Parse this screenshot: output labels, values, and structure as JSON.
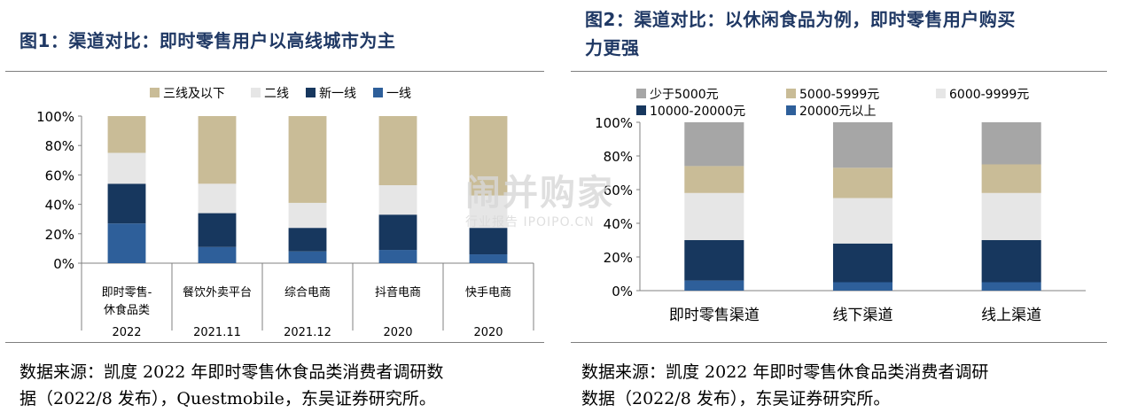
{
  "chart_data": [
    {
      "type": "bar",
      "stacked": true,
      "title": "图1：渠道对比：即时零售用户以高线城市为主",
      "categories": [
        "即时零售-休食品类",
        "餐饮外卖平台",
        "综合电商",
        "抖音电商",
        "快手电商"
      ],
      "category_lines": [
        [
          "即时零售-",
          "休食品类"
        ],
        [
          "餐饮外卖平台"
        ],
        [
          "综合电商"
        ],
        [
          "抖音电商"
        ],
        [
          "快手电商"
        ]
      ],
      "years": [
        "2022",
        "2021.11",
        "2021.12",
        "2020",
        "2020"
      ],
      "ylim": [
        0,
        100
      ],
      "yticks": [
        "0%",
        "20%",
        "40%",
        "60%",
        "80%",
        "100%"
      ],
      "legend_position": "top",
      "series": [
        {
          "name": "一线",
          "color": "#2e5f9a",
          "values": [
            27,
            11,
            8,
            9,
            6
          ]
        },
        {
          "name": "新一线",
          "color": "#17375e",
          "values": [
            27,
            23,
            16,
            24,
            18
          ]
        },
        {
          "name": "二线",
          "color": "#e6e6e6",
          "values": [
            21,
            20,
            17,
            20,
            22
          ]
        },
        {
          "name": "三线及以下",
          "color": "#c9bc97",
          "values": [
            25,
            46,
            59,
            47,
            54
          ]
        }
      ],
      "legend_order": [
        "三线及以下",
        "二线",
        "新一线",
        "一线"
      ],
      "source": "数据来源：凯度 2022 年即时零售休食品类消费者调研数据（2022/8 发布），Questmobile，东吴证券研究所。",
      "source_lines": [
        "数据来源：凯度 2022 年即时零售休食品类消费者调研数",
        "据（2022/8 发布），Questmobile，东吴证券研究所。"
      ]
    },
    {
      "type": "bar",
      "stacked": true,
      "title": "图2：渠道对比：以休闲食品为例，即时零售用户购买力更强",
      "title_lines": [
        "图2：渠道对比：以休闲食品为例，即时零售用户购买",
        "力更强"
      ],
      "categories": [
        "即时零售渠道",
        "线下渠道",
        "线上渠道"
      ],
      "ylim": [
        0,
        100
      ],
      "yticks": [
        "0%",
        "20%",
        "40%",
        "60%",
        "80%",
        "100%"
      ],
      "legend_position": "top",
      "series": [
        {
          "name": "20000元以上",
          "color": "#2e5f9a",
          "values": [
            6,
            5,
            5
          ]
        },
        {
          "name": "10000-20000元",
          "color": "#17375e",
          "values": [
            24,
            23,
            25
          ]
        },
        {
          "name": "6000-9999元",
          "color": "#e6e6e6",
          "values": [
            28,
            27,
            28
          ]
        },
        {
          "name": "5000-5999元",
          "color": "#c9bc97",
          "values": [
            16,
            18,
            17
          ]
        },
        {
          "name": "少于5000元",
          "color": "#a6a6a6",
          "values": [
            26,
            27,
            25
          ]
        }
      ],
      "legend_order": [
        "少于5000元",
        "5000-5999元",
        "6000-9999元",
        "10000-20000元",
        "20000元以上"
      ],
      "source": "数据来源：凯度 2022 年即时零售休食品类消费者调研数据（2022/8 发布），东吴证券研究所。",
      "source_lines": [
        "数据来源：凯度 2022 年即时零售休食品类消费者调研",
        "数据（2022/8 发布），东吴证券研究所。"
      ]
    }
  ],
  "watermark": {
    "line1": "闹并购家",
    "line2": "行业报告 IPOIPO.CN"
  }
}
